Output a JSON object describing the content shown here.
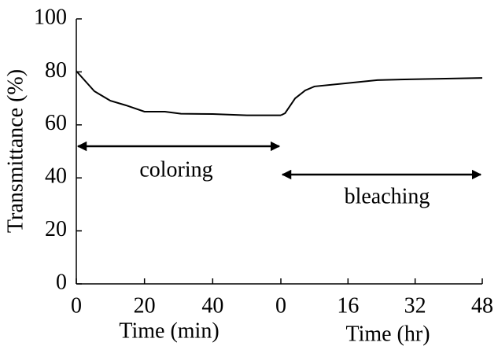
{
  "chart_data": {
    "type": "line",
    "ylabel": "Transmittance (%)",
    "ylim": [
      0,
      100
    ],
    "yticks": [
      0,
      20,
      40,
      60,
      80,
      100
    ],
    "color": "#000000",
    "panels": [
      {
        "xlabel": "Time (min)",
        "xlim": [
          0,
          60
        ],
        "xticks": [
          0,
          20,
          40
        ],
        "x": [
          0,
          5.3,
          10,
          14.5,
          20,
          26,
          30.7,
          40,
          50,
          58,
          60
        ],
        "values": [
          80.3,
          72.7,
          69.1,
          67.4,
          65,
          65,
          64.2,
          64.1,
          63.6,
          63.6,
          63.6
        ]
      },
      {
        "xlabel": "Time (hr)",
        "xlim": [
          0,
          48
        ],
        "xticks": [
          0,
          16,
          32,
          48
        ],
        "x": [
          0,
          1,
          3.4,
          5.8,
          8,
          15.6,
          23,
          30.6,
          48
        ],
        "values": [
          63.6,
          64.4,
          70,
          73,
          74.5,
          75.7,
          76.9,
          77.2,
          77.7
        ]
      }
    ],
    "annotations": [
      "coloring",
      "bleaching"
    ]
  }
}
